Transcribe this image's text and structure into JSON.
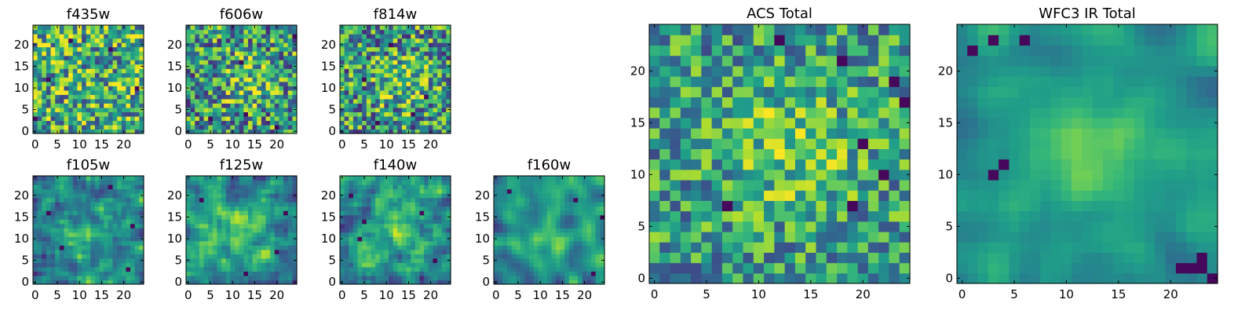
{
  "chart_data": [
    {
      "type": "heatmap",
      "title": "f435w",
      "colormap": "viridis",
      "grid_size": [
        25,
        25
      ],
      "xticks": [
        0,
        5,
        10,
        15,
        20
      ],
      "yticks": [
        0,
        5,
        10,
        15,
        20
      ],
      "mean_level": 0.62,
      "roughness": 0.42,
      "smoothness": 0,
      "peak": null,
      "dark_spots": [
        [
          3,
          12
        ],
        [
          23,
          10
        ],
        [
          0,
          3
        ],
        [
          17,
          19
        ],
        [
          8,
          21
        ]
      ],
      "seed": 11
    },
    {
      "type": "heatmap",
      "title": "f606w",
      "colormap": "viridis",
      "grid_size": [
        25,
        25
      ],
      "xticks": [
        0,
        5,
        10,
        15,
        20
      ],
      "yticks": [
        0,
        5,
        10,
        15,
        20
      ],
      "mean_level": 0.6,
      "roughness": 0.42,
      "smoothness": 0,
      "peak": [
        14,
        12
      ],
      "dark_spots": [
        [
          12,
          16
        ],
        [
          13,
          4
        ],
        [
          20,
          1
        ],
        [
          5,
          3
        ],
        [
          24,
          22
        ]
      ],
      "seed": 23
    },
    {
      "type": "heatmap",
      "title": "f814w",
      "colormap": "viridis",
      "grid_size": [
        25,
        25
      ],
      "xticks": [
        0,
        5,
        10,
        15,
        20
      ],
      "yticks": [
        0,
        5,
        10,
        15,
        20
      ],
      "mean_level": 0.6,
      "roughness": 0.42,
      "smoothness": 0,
      "peak": [
        14,
        12
      ],
      "dark_spots": [
        [
          8,
          2
        ],
        [
          11,
          20
        ],
        [
          5,
          12
        ],
        [
          16,
          4
        ],
        [
          19,
          8
        ]
      ],
      "seed": 37
    },
    {
      "type": "heatmap",
      "title": "f105w",
      "colormap": "viridis",
      "grid_size": [
        25,
        25
      ],
      "xticks": [
        0,
        5,
        10,
        15,
        20
      ],
      "yticks": [
        0,
        5,
        10,
        15,
        20
      ],
      "mean_level": 0.55,
      "roughness": 0.35,
      "smoothness": 1,
      "peak": [
        12,
        10
      ],
      "dark_spots": [
        [
          3,
          16
        ],
        [
          6,
          8
        ],
        [
          22,
          13
        ],
        [
          21,
          3
        ],
        [
          17,
          22
        ]
      ],
      "seed": 41
    },
    {
      "type": "heatmap",
      "title": "f125w",
      "colormap": "viridis",
      "grid_size": [
        25,
        25
      ],
      "xticks": [
        0,
        5,
        10,
        15,
        20
      ],
      "yticks": [
        0,
        5,
        10,
        15,
        20
      ],
      "mean_level": 0.55,
      "roughness": 0.35,
      "smoothness": 1,
      "peak": [
        12,
        12
      ],
      "dark_spots": [
        [
          13,
          2
        ],
        [
          20,
          7
        ],
        [
          3,
          19
        ],
        [
          22,
          16
        ]
      ],
      "seed": 53
    },
    {
      "type": "heatmap",
      "title": "f140w",
      "colormap": "viridis",
      "grid_size": [
        25,
        25
      ],
      "xticks": [
        0,
        5,
        10,
        15,
        20
      ],
      "yticks": [
        0,
        5,
        10,
        15,
        20
      ],
      "mean_level": 0.55,
      "roughness": 0.35,
      "smoothness": 1,
      "peak": [
        12,
        14
      ],
      "dark_spots": [
        [
          5,
          14
        ],
        [
          4,
          10
        ],
        [
          18,
          16
        ],
        [
          2,
          20
        ],
        [
          21,
          5
        ]
      ],
      "seed": 67
    },
    {
      "type": "heatmap",
      "title": "f160w",
      "colormap": "viridis",
      "grid_size": [
        25,
        25
      ],
      "xticks": [
        0,
        5,
        10,
        15,
        20
      ],
      "yticks": [
        0,
        5,
        10,
        15,
        20
      ],
      "mean_level": 0.55,
      "roughness": 0.3,
      "smoothness": 2,
      "peak": [
        11,
        10
      ],
      "dark_spots": [
        [
          22,
          2
        ],
        [
          24,
          15
        ],
        [
          3,
          21
        ],
        [
          18,
          19
        ]
      ],
      "seed": 79
    },
    {
      "type": "heatmap",
      "title": "ACS Total",
      "colormap": "viridis",
      "grid_size": [
        25,
        25
      ],
      "xticks": [
        0,
        5,
        10,
        15,
        20
      ],
      "yticks": [
        0,
        5,
        10,
        15,
        20
      ],
      "mean_level": 0.62,
      "roughness": 0.32,
      "smoothness": 0,
      "peak": [
        13,
        13
      ],
      "dark_spots": [
        [
          12,
          23
        ],
        [
          7,
          7
        ],
        [
          19,
          7
        ],
        [
          22,
          10
        ],
        [
          20,
          13
        ],
        [
          23,
          19
        ],
        [
          24,
          17
        ],
        [
          18,
          21
        ]
      ],
      "seed": 97
    },
    {
      "type": "heatmap",
      "title": "WFC3 IR Total",
      "colormap": "viridis",
      "grid_size": [
        25,
        25
      ],
      "xticks": [
        0,
        5,
        10,
        15,
        20
      ],
      "yticks": [
        0,
        5,
        10,
        15,
        20
      ],
      "mean_level": 0.6,
      "roughness": 0.18,
      "smoothness": 2,
      "peak": [
        12,
        12
      ],
      "dark_spots": [
        [
          4,
          11
        ],
        [
          3,
          10
        ],
        [
          22,
          1
        ],
        [
          23,
          1
        ],
        [
          23,
          2
        ],
        [
          24,
          0
        ],
        [
          21,
          1
        ],
        [
          1,
          22
        ],
        [
          3,
          23
        ],
        [
          6,
          23
        ]
      ],
      "seed": 113
    }
  ]
}
